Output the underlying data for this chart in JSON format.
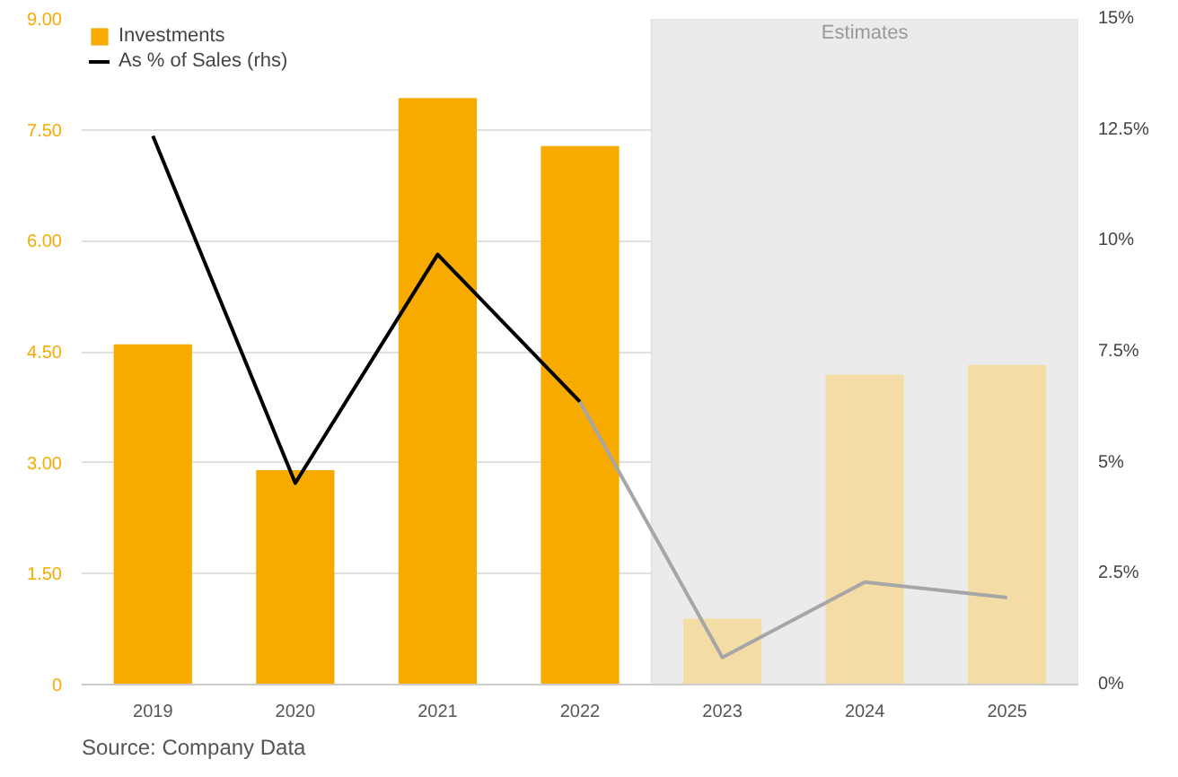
{
  "chart_data": {
    "type": "bar",
    "categories": [
      "2019",
      "2020",
      "2021",
      "2022",
      "2023",
      "2024",
      "2025"
    ],
    "series": [
      {
        "name": "Investments",
        "color": "#f7ab00",
        "colors": [
          "#f7ab00",
          "#f7ab00",
          "#f7ab00",
          "#f7ab00",
          "#f3dca6",
          "#f3dca6",
          "#f3dca6"
        ],
        "values": [
          4.6,
          2.9,
          7.93,
          7.28,
          0.89,
          4.19,
          4.32
        ]
      },
      {
        "name": "As % of Sales (rhs)",
        "type": "line",
        "axis": "y2",
        "color": "#000000",
        "values": [
          12.36,
          4.54,
          9.69,
          6.37,
          null,
          null,
          null
        ]
      },
      {
        "type": "line",
        "axis": "y2",
        "color": "#a6a6a6",
        "values": [
          null,
          null,
          null,
          6.37,
          0.61,
          2.31,
          1.96
        ]
      }
    ],
    "ylim": [
      0,
      9
    ],
    "yticks": [
      {
        "value": 0,
        "label": "0"
      },
      {
        "value": 1.5,
        "label": "1.50"
      },
      {
        "value": 3,
        "label": "3.00"
      },
      {
        "value": 4.5,
        "label": "4.50"
      },
      {
        "value": 6,
        "label": "6.00"
      },
      {
        "value": 7.5,
        "label": "7.50"
      },
      {
        "value": 9,
        "label": "9.00"
      }
    ],
    "y2lim": [
      0,
      15
    ],
    "y2ticks": [
      {
        "value": 0,
        "label": "0%"
      },
      {
        "value": 2.5,
        "label": "2.5%"
      },
      {
        "value": 5,
        "label": "5%"
      },
      {
        "value": 7.5,
        "label": "7.5%"
      },
      {
        "value": 10,
        "label": "10%"
      },
      {
        "value": 12.5,
        "label": "12.5%"
      },
      {
        "value": 15,
        "label": "15%"
      }
    ],
    "bands": [
      {
        "axis": "x",
        "from": "2023",
        "to": "2025",
        "label": "Estimates",
        "color": "#ebebeb"
      }
    ],
    "annotations": [
      "Source: Company Data"
    ],
    "grid": "y",
    "legend": "top left",
    "marker": "none"
  }
}
